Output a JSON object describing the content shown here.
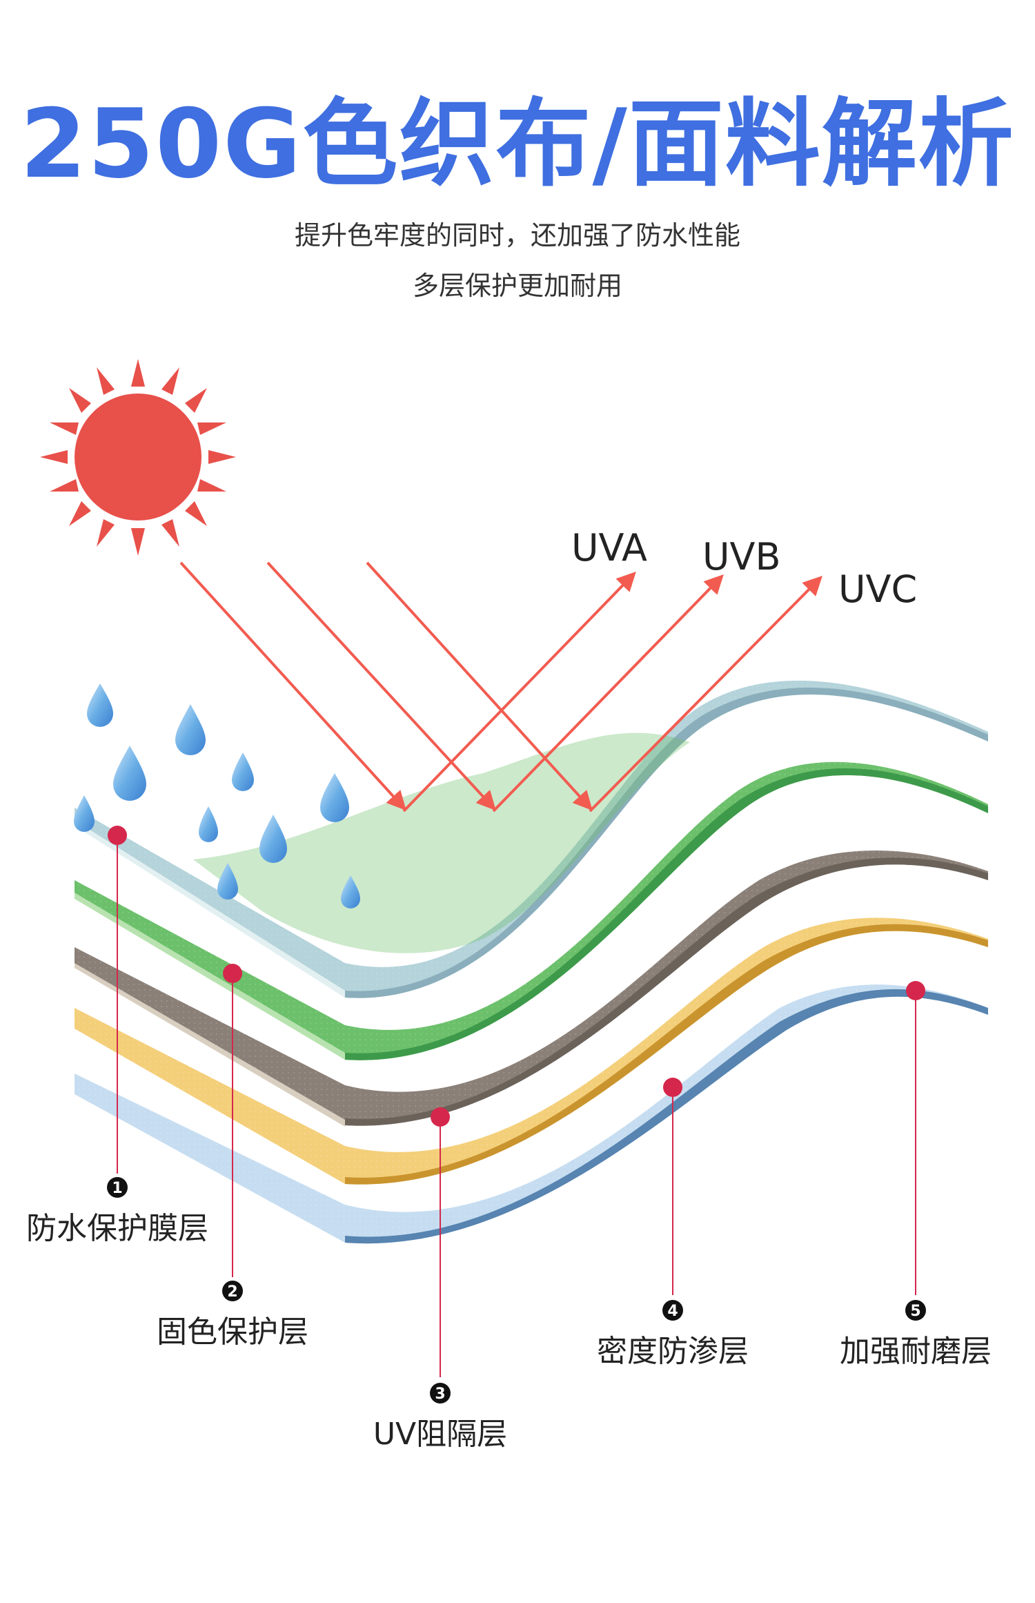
{
  "title": "250G色织布/面料解析",
  "subtitle_line1": "提升色牢度的同时，还加强了防水性能",
  "subtitle_line2": "多层保护更加耐用",
  "uv": {
    "uva": "UVA",
    "uvb": "UVB",
    "uvc": "UVC"
  },
  "layers": [
    {
      "num": "1",
      "label": "防水保护膜层"
    },
    {
      "num": "2",
      "label": "固色保护层"
    },
    {
      "num": "3",
      "label": "UV阻隔层"
    },
    {
      "num": "4",
      "label": "密度防渗层"
    },
    {
      "num": "5",
      "label": "加强耐磨层"
    }
  ],
  "colors": {
    "title": "#3f6fe0",
    "sun": "#e8504a",
    "arrow": "#f25b50",
    "marker": "#d5274b",
    "layer_waterproof": "#b4d3da",
    "layer_color_fix": "#6cc06b",
    "layer_uv": "#8b8078",
    "layer_density": "#f4cf7a",
    "layer_wear": "#c6ddf1",
    "water": "#6aaee6"
  }
}
